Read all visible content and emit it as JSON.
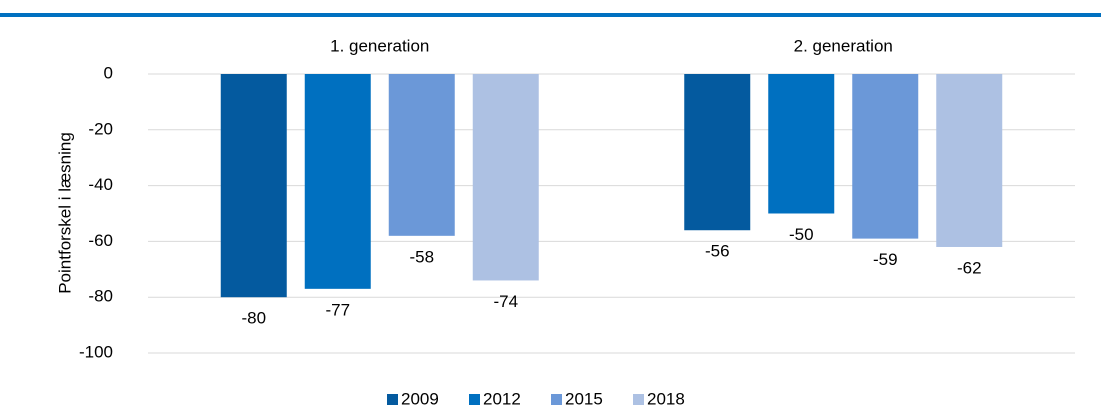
{
  "chart_data": {
    "type": "bar",
    "categories": [
      "1. generation",
      "2. generation"
    ],
    "series": [
      {
        "name": "2009",
        "color": "#045a9f",
        "values": [
          -80,
          -56
        ]
      },
      {
        "name": "2012",
        "color": "#0070c0",
        "values": [
          -77,
          -50
        ]
      },
      {
        "name": "2015",
        "color": "#6b98d8",
        "values": [
          -58,
          -59
        ]
      },
      {
        "name": "2018",
        "color": "#adc1e3",
        "values": [
          -74,
          -62
        ]
      }
    ],
    "y_label": "Pointforskel i læsning",
    "ylim": [
      -100,
      0
    ],
    "yticks": [
      0,
      -20,
      -40,
      -60,
      -80,
      -100
    ],
    "grid": true,
    "legend": "bottom"
  }
}
